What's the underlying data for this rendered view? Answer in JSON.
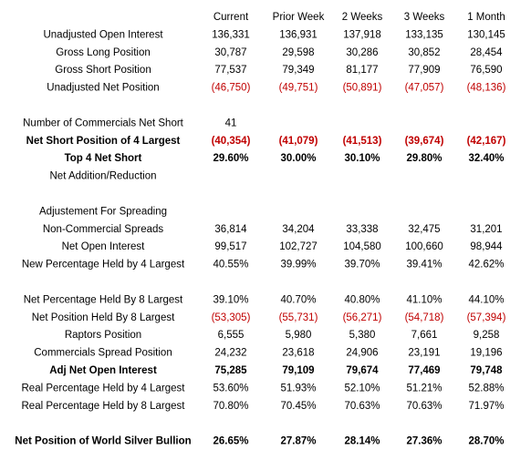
{
  "table": {
    "columns": [
      "Current",
      "Prior Week",
      "2 Weeks",
      "3 Weeks",
      "1 Month"
    ],
    "negative_color": "#c00000",
    "sections": [
      {
        "rows": [
          {
            "label": "Unadjusted Open Interest",
            "cells": [
              "136,331",
              "136,931",
              "137,918",
              "133,135",
              "130,145"
            ]
          },
          {
            "label": "Gross Long Position",
            "cells": [
              "30,787",
              "29,598",
              "30,286",
              "30,852",
              "28,454"
            ]
          },
          {
            "label": "Gross Short Position",
            "cells": [
              "77,537",
              "79,349",
              "81,177",
              "77,909",
              "76,590"
            ]
          },
          {
            "label": "Unadjusted Net Position",
            "cells": [
              "(46,750)",
              "(49,751)",
              "(50,891)",
              "(47,057)",
              "(48,136)"
            ],
            "negative": true
          }
        ]
      },
      {
        "rows": [
          {
            "label": "Number of Commercials Net Short",
            "cells": [
              "41"
            ]
          },
          {
            "label": "Net Short Position of 4 Largest",
            "cells": [
              "(40,354)",
              "(41,079)",
              "(41,513)",
              "(39,674)",
              "(42,167)"
            ],
            "negative": true,
            "bold": true
          },
          {
            "label": "Top 4 Net Short",
            "cells": [
              "29.60%",
              "30.00%",
              "30.10%",
              "29.80%",
              "32.40%"
            ],
            "bold": true
          },
          {
            "label": "Net Addition/Reduction",
            "cells": []
          }
        ]
      },
      {
        "rows": [
          {
            "label": "Adjustement For Spreading",
            "cells": []
          },
          {
            "label": "Non-Commercial Spreads",
            "cells": [
              "36,814",
              "34,204",
              "33,338",
              "32,475",
              "31,201"
            ]
          },
          {
            "label": "Net Open Interest",
            "cells": [
              "99,517",
              "102,727",
              "104,580",
              "100,660",
              "98,944"
            ]
          },
          {
            "label": "New Percentage Held by 4 Largest",
            "cells": [
              "40.55%",
              "39.99%",
              "39.70%",
              "39.41%",
              "42.62%"
            ]
          }
        ]
      },
      {
        "rows": [
          {
            "label": "Net Percentage Held By 8 Largest",
            "cells": [
              "39.10%",
              "40.70%",
              "40.80%",
              "41.10%",
              "44.10%"
            ]
          },
          {
            "label": "Net Position Held By 8 Largest",
            "cells": [
              "(53,305)",
              "(55,731)",
              "(56,271)",
              "(54,718)",
              "(57,394)"
            ],
            "negative": true
          },
          {
            "label": "Raptors Position",
            "cells": [
              "6,555",
              "5,980",
              "5,380",
              "7,661",
              "9,258"
            ]
          },
          {
            "label": "Commercials Spread Position",
            "cells": [
              "24,232",
              "23,618",
              "24,906",
              "23,191",
              "19,196"
            ]
          },
          {
            "label": "Adj Net Open Interest",
            "cells": [
              "75,285",
              "79,109",
              "79,674",
              "77,469",
              "79,748"
            ],
            "bold": true
          },
          {
            "label": "Real Percentage Held by 4 Largest",
            "cells": [
              "53.60%",
              "51.93%",
              "52.10%",
              "51.21%",
              "52.88%"
            ]
          },
          {
            "label": "Real Percentage Held by 8 Largest",
            "cells": [
              "70.80%",
              "70.45%",
              "70.63%",
              "70.63%",
              "71.97%"
            ]
          }
        ]
      },
      {
        "rows": [
          {
            "label": "Net Position of World Silver Bullion",
            "cells": [
              "26.65%",
              "27.87%",
              "28.14%",
              "27.36%",
              "28.70%"
            ],
            "bold": true
          }
        ]
      }
    ]
  }
}
